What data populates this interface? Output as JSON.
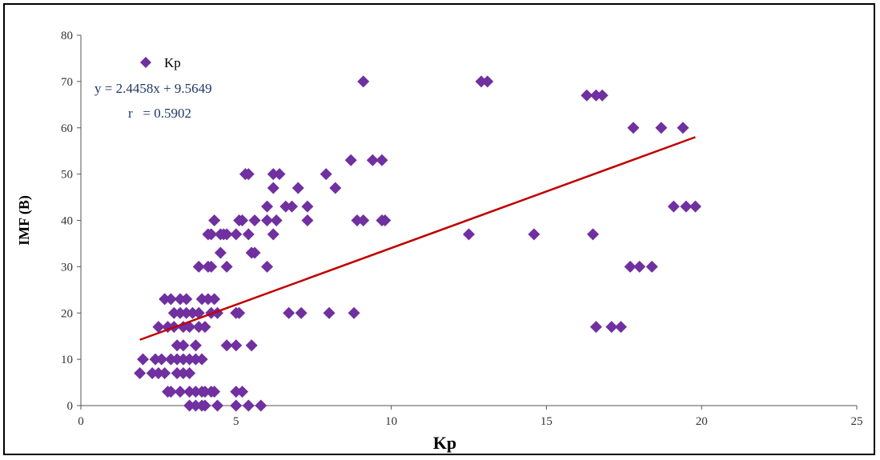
{
  "chart_data": {
    "type": "scatter",
    "xlabel": "Kp",
    "ylabel": "IMF (B)",
    "xlim": [
      0,
      25
    ],
    "ylim": [
      0,
      80
    ],
    "xticks": [
      "0",
      "5",
      "10",
      "15",
      "20",
      "25"
    ],
    "yticks": [
      "0",
      "10",
      "20",
      "30",
      "40",
      "50",
      "60",
      "70",
      "80"
    ],
    "grid": false,
    "legend_position": "top-left",
    "marker": "diamond",
    "colors": {
      "points": "#7030a0",
      "trendline": "#c00000",
      "equation": "#1f3864"
    },
    "series": [
      {
        "name": "Kp",
        "points": [
          [
            1.9,
            7
          ],
          [
            2.0,
            10
          ],
          [
            2.3,
            7
          ],
          [
            2.4,
            10
          ],
          [
            2.5,
            7
          ],
          [
            2.5,
            17
          ],
          [
            2.6,
            10
          ],
          [
            2.7,
            7
          ],
          [
            2.7,
            23
          ],
          [
            2.8,
            17
          ],
          [
            2.8,
            3
          ],
          [
            2.9,
            10
          ],
          [
            2.9,
            3
          ],
          [
            2.9,
            23
          ],
          [
            3.0,
            17
          ],
          [
            3.0,
            20
          ],
          [
            3.1,
            13
          ],
          [
            3.1,
            10
          ],
          [
            3.1,
            7
          ],
          [
            3.2,
            20
          ],
          [
            3.2,
            23
          ],
          [
            3.2,
            3
          ],
          [
            3.3,
            17
          ],
          [
            3.3,
            7
          ],
          [
            3.3,
            10
          ],
          [
            3.3,
            13
          ],
          [
            3.4,
            20
          ],
          [
            3.4,
            23
          ],
          [
            3.5,
            10
          ],
          [
            3.5,
            0
          ],
          [
            3.5,
            17
          ],
          [
            3.5,
            7
          ],
          [
            3.5,
            3
          ],
          [
            3.6,
            20
          ],
          [
            3.7,
            13
          ],
          [
            3.7,
            10
          ],
          [
            3.7,
            3
          ],
          [
            3.7,
            0
          ],
          [
            3.8,
            20
          ],
          [
            3.8,
            30
          ],
          [
            3.8,
            17
          ],
          [
            3.9,
            3
          ],
          [
            3.9,
            0
          ],
          [
            3.9,
            23
          ],
          [
            3.9,
            10
          ],
          [
            4.0,
            17
          ],
          [
            4.0,
            3
          ],
          [
            4.0,
            0
          ],
          [
            4.1,
            23
          ],
          [
            4.1,
            30
          ],
          [
            4.1,
            37
          ],
          [
            4.2,
            37
          ],
          [
            4.2,
            3
          ],
          [
            4.2,
            20
          ],
          [
            4.2,
            30
          ],
          [
            4.3,
            23
          ],
          [
            4.3,
            40
          ],
          [
            4.3,
            3
          ],
          [
            4.4,
            20
          ],
          [
            4.4,
            0
          ],
          [
            4.5,
            33
          ],
          [
            4.5,
            37
          ],
          [
            4.6,
            37
          ],
          [
            4.7,
            37
          ],
          [
            4.7,
            30
          ],
          [
            4.7,
            13
          ],
          [
            5.0,
            37
          ],
          [
            5.0,
            20
          ],
          [
            5.0,
            13
          ],
          [
            5.0,
            3
          ],
          [
            5.0,
            0
          ],
          [
            5.1,
            40
          ],
          [
            5.1,
            20
          ],
          [
            5.2,
            3
          ],
          [
            5.2,
            40
          ],
          [
            5.3,
            50
          ],
          [
            5.4,
            50
          ],
          [
            5.4,
            37
          ],
          [
            5.4,
            0
          ],
          [
            5.5,
            33
          ],
          [
            5.5,
            13
          ],
          [
            5.6,
            33
          ],
          [
            5.6,
            40
          ],
          [
            5.8,
            0
          ],
          [
            6.0,
            30
          ],
          [
            6.0,
            40
          ],
          [
            6.0,
            43
          ],
          [
            6.2,
            37
          ],
          [
            6.2,
            47
          ],
          [
            6.2,
            50
          ],
          [
            6.3,
            40
          ],
          [
            6.4,
            50
          ],
          [
            6.6,
            43
          ],
          [
            6.7,
            20
          ],
          [
            6.8,
            43
          ],
          [
            7.0,
            47
          ],
          [
            7.1,
            20
          ],
          [
            7.3,
            40
          ],
          [
            7.3,
            43
          ],
          [
            7.9,
            50
          ],
          [
            8.0,
            20
          ],
          [
            8.2,
            47
          ],
          [
            8.7,
            53
          ],
          [
            8.8,
            20
          ],
          [
            8.9,
            40
          ],
          [
            9.1,
            40
          ],
          [
            9.1,
            70
          ],
          [
            9.4,
            53
          ],
          [
            9.7,
            53
          ],
          [
            9.7,
            40
          ],
          [
            9.8,
            40
          ],
          [
            12.5,
            37
          ],
          [
            12.9,
            70
          ],
          [
            13.1,
            70
          ],
          [
            14.6,
            37
          ],
          [
            16.3,
            67
          ],
          [
            16.5,
            37
          ],
          [
            16.6,
            67
          ],
          [
            16.6,
            17
          ],
          [
            16.8,
            67
          ],
          [
            17.1,
            17
          ],
          [
            17.4,
            17
          ],
          [
            17.8,
            60
          ],
          [
            17.7,
            30
          ],
          [
            18.0,
            30
          ],
          [
            18.4,
            30
          ],
          [
            18.7,
            60
          ],
          [
            19.1,
            43
          ],
          [
            19.4,
            60
          ],
          [
            19.5,
            43
          ],
          [
            19.8,
            43
          ]
        ]
      }
    ],
    "trendline": {
      "equation": "y = 2.4458x + 9.5649",
      "r": "r   = 0.5902",
      "slope": 2.4458,
      "intercept": 9.5649,
      "x_range": [
        1.9,
        19.8
      ]
    }
  }
}
